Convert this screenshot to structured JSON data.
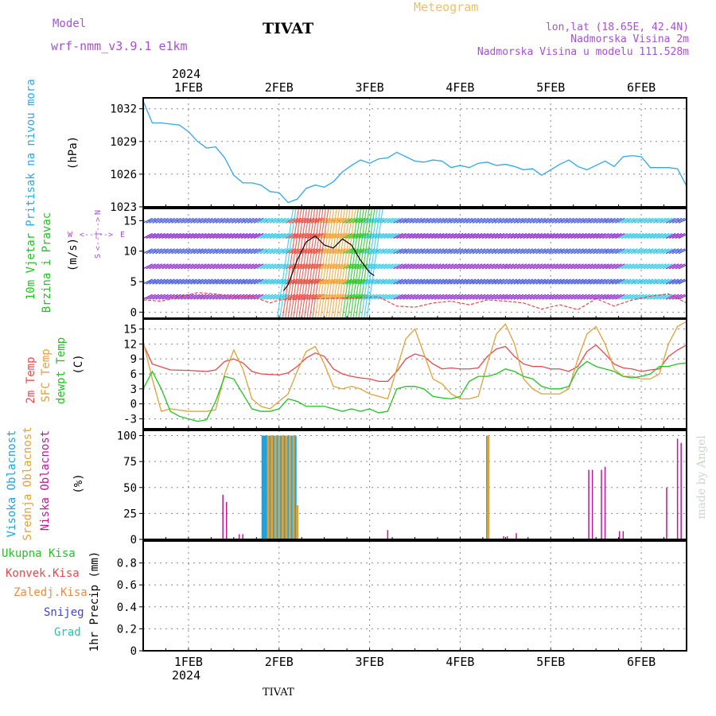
{
  "header": {
    "model_label": "Model",
    "model_name": "wrf-nmm_v3.9.1 e1km",
    "station": "TIVAT",
    "meteogram": "Meteogram",
    "lonlat": "lon,lat (18.65E, 42.4N)",
    "elevation": "Nadmorska Visina 2m",
    "model_elevation": "Nadmorska Visina u modelu 111.528m"
  },
  "footer": {
    "station": "TIVAT",
    "credit": "made by Angel"
  },
  "colors": {
    "pressure": "#2ea8ec",
    "t2m": "#e8474b",
    "sfc": "#e0a238",
    "dewpt": "#22c322",
    "high_cloud": "#1fa3e0",
    "mid_cloud": "#e0a238",
    "low_cloud": "#c0179a",
    "wind_purple": "#8a22d0",
    "wind_blue": "#3f56e0",
    "wind_cyan": "#2cc6e6",
    "title_purple": "#a84fd6",
    "title_orange": "#f0c060"
  },
  "chart_data": [
    {
      "type": "line",
      "name": "pressure-panel",
      "ylabel_side": "Pritisak na nivou mora",
      "ylabel_unit": "(hPa)",
      "yticks": [
        1023,
        1026,
        1029,
        1032
      ],
      "ylim": [
        1023,
        1033
      ],
      "xlim": [
        0.5,
        6.5
      ],
      "x_ticks": [
        1,
        2,
        3,
        4,
        5,
        6
      ],
      "x_tick_labels": [
        "1FEB",
        "2FEB",
        "3FEB",
        "4FEB",
        "5FEB",
        "6FEB"
      ],
      "year_label": "2024",
      "grid": true,
      "series": [
        {
          "color_key": "pressure",
          "x": [
            0.5,
            0.6,
            0.7,
            0.8,
            0.9,
            1.0,
            1.1,
            1.2,
            1.3,
            1.4,
            1.5,
            1.6,
            1.7,
            1.8,
            1.9,
            2.0,
            2.1,
            2.2,
            2.3,
            2.4,
            2.5,
            2.6,
            2.7,
            2.8,
            2.9,
            3.0,
            3.1,
            3.2,
            3.3,
            3.4,
            3.5,
            3.6,
            3.7,
            3.8,
            3.9,
            4.0,
            4.1,
            4.2,
            4.3,
            4.4,
            4.5,
            4.6,
            4.7,
            4.8,
            4.9,
            5.0,
            5.1,
            5.2,
            5.3,
            5.4,
            5.5,
            5.6,
            5.7,
            5.8,
            5.9,
            6.0,
            6.1,
            6.2,
            6.3,
            6.4,
            6.5
          ],
          "y": [
            1032.7,
            1030.7,
            1030.7,
            1030.6,
            1030.5,
            1029.9,
            1029.0,
            1028.4,
            1028.5,
            1027.5,
            1025.9,
            1025.2,
            1025.2,
            1025.0,
            1024.4,
            1024.3,
            1023.4,
            1023.7,
            1024.7,
            1025.0,
            1024.8,
            1025.3,
            1026.2,
            1026.8,
            1027.3,
            1027.0,
            1027.4,
            1027.5,
            1028.0,
            1027.6,
            1027.2,
            1027.1,
            1027.3,
            1027.2,
            1026.6,
            1026.8,
            1026.6,
            1027.0,
            1027.1,
            1026.8,
            1026.9,
            1026.7,
            1026.4,
            1026.5,
            1025.9,
            1026.4,
            1026.9,
            1027.3,
            1026.7,
            1026.4,
            1026.8,
            1027.2,
            1026.7,
            1027.6,
            1027.7,
            1027.6,
            1026.6,
            1026.6,
            1026.6,
            1026.5,
            1024.9
          ]
        }
      ]
    },
    {
      "type": "line",
      "name": "wind-panel",
      "ylabel_side": [
        "10m Vjetar",
        "Brzina i Pravac"
      ],
      "ylabel_unit": "(m/s)",
      "compass": {
        "n": "N",
        "s": "S",
        "e": "E",
        "w": "W"
      },
      "yticks": [
        0,
        5,
        10,
        15
      ],
      "ylim": [
        -1,
        17
      ],
      "xlim": [
        0.5,
        6.5
      ],
      "grid": true,
      "series": [
        {
          "name": "wind-speed-black",
          "x": [
            2.05,
            2.1,
            2.2,
            2.3,
            2.4,
            2.5,
            2.6,
            2.7,
            2.8,
            2.9,
            3.0,
            3.05
          ],
          "y": [
            3.5,
            4.5,
            8.5,
            11.5,
            12.5,
            11.0,
            10.5,
            12.0,
            11.0,
            8.5,
            6.5,
            6.0
          ]
        },
        {
          "name": "wind-speed-red",
          "x": [
            0.5,
            0.7,
            0.9,
            1.1,
            1.3,
            1.5,
            1.7,
            1.9,
            2.0,
            3.1,
            3.3,
            3.5,
            3.7,
            3.9,
            4.1,
            4.3,
            4.5,
            4.7,
            4.9,
            5.1,
            5.3,
            5.5,
            5.7,
            5.9,
            6.1,
            6.3,
            6.5
          ],
          "y": [
            2.0,
            1.8,
            2.5,
            3.2,
            3.0,
            2.5,
            2.6,
            1.5,
            2.0,
            2.5,
            1.0,
            0.8,
            1.5,
            1.8,
            1.2,
            2.0,
            1.8,
            1.5,
            0.5,
            1.2,
            0.4,
            2.2,
            1.0,
            2.0,
            2.6,
            3.0,
            1.5
          ]
        }
      ]
    },
    {
      "type": "line",
      "name": "temperature-panel",
      "ylabel_side": [
        "2m Temp",
        "SFC Temp",
        "dewpt Temp"
      ],
      "ylabel_unit": "(C)",
      "yticks": [
        -3,
        0,
        3,
        6,
        9,
        12,
        15
      ],
      "ylim": [
        -5,
        17
      ],
      "xlim": [
        0.5,
        6.5
      ],
      "grid": true,
      "series": [
        {
          "name": "2m Temp",
          "color_key": "t2m",
          "x": [
            0.5,
            0.6,
            0.8,
            1.0,
            1.2,
            1.3,
            1.4,
            1.5,
            1.6,
            1.7,
            1.8,
            1.9,
            2.0,
            2.1,
            2.2,
            2.3,
            2.4,
            2.5,
            2.6,
            2.7,
            2.8,
            2.9,
            3.0,
            3.1,
            3.2,
            3.3,
            3.4,
            3.5,
            3.6,
            3.7,
            3.8,
            3.9,
            4.0,
            4.1,
            4.2,
            4.3,
            4.4,
            4.5,
            4.6,
            4.7,
            4.8,
            4.9,
            5.0,
            5.1,
            5.2,
            5.3,
            5.4,
            5.5,
            5.6,
            5.7,
            5.8,
            5.9,
            6.0,
            6.1,
            6.2,
            6.3,
            6.4,
            6.5
          ],
          "y": [
            12.0,
            8.0,
            6.8,
            6.7,
            6.5,
            6.8,
            8.5,
            9.0,
            8.2,
            6.5,
            6.0,
            5.9,
            5.8,
            6.2,
            7.5,
            9.2,
            10.2,
            9.5,
            7.0,
            6.0,
            5.5,
            5.2,
            5.0,
            4.5,
            4.5,
            6.5,
            9.0,
            10.0,
            9.5,
            8.0,
            7.0,
            7.2,
            7.0,
            7.0,
            7.2,
            9.5,
            11.0,
            11.5,
            9.5,
            8.0,
            7.5,
            7.5,
            7.0,
            7.0,
            6.5,
            7.5,
            10.5,
            11.8,
            10.0,
            8.0,
            7.2,
            7.0,
            6.5,
            6.8,
            7.0,
            9.5,
            10.8,
            11.8
          ]
        },
        {
          "name": "SFC Temp",
          "color_key": "sfc",
          "x": [
            0.5,
            0.6,
            0.7,
            0.8,
            1.0,
            1.2,
            1.3,
            1.4,
            1.5,
            1.6,
            1.7,
            1.8,
            1.9,
            2.0,
            2.1,
            2.2,
            2.3,
            2.4,
            2.5,
            2.6,
            2.7,
            2.8,
            2.9,
            3.0,
            3.1,
            3.2,
            3.3,
            3.4,
            3.5,
            3.6,
            3.7,
            3.8,
            3.9,
            4.0,
            4.1,
            4.2,
            4.3,
            4.4,
            4.5,
            4.6,
            4.7,
            4.8,
            4.9,
            5.0,
            5.1,
            5.2,
            5.3,
            5.4,
            5.5,
            5.6,
            5.7,
            5.8,
            5.9,
            6.0,
            6.1,
            6.2,
            6.3,
            6.4,
            6.5
          ],
          "y": [
            12.5,
            5.0,
            -1.5,
            -1.0,
            -1.5,
            -1.5,
            -1.2,
            6.0,
            10.8,
            7.0,
            1.0,
            -0.5,
            -1.0,
            0.5,
            2.0,
            6.5,
            10.5,
            11.5,
            8.0,
            3.5,
            3.0,
            3.5,
            3.0,
            2.0,
            1.5,
            1.0,
            7.0,
            13.0,
            15.0,
            10.0,
            5.0,
            4.0,
            2.0,
            1.0,
            1.0,
            1.5,
            8.0,
            14.0,
            16.0,
            12.0,
            5.0,
            3.0,
            2.0,
            2.0,
            2.0,
            3.0,
            9.0,
            14.0,
            15.5,
            12.0,
            7.0,
            5.5,
            5.5,
            5.0,
            5.0,
            6.0,
            12.0,
            15.5,
            16.5
          ]
        },
        {
          "name": "dewpt Temp",
          "color_key": "dewpt",
          "x": [
            0.5,
            0.6,
            0.7,
            0.8,
            0.9,
            1.0,
            1.1,
            1.2,
            1.3,
            1.4,
            1.5,
            1.6,
            1.7,
            1.8,
            1.9,
            2.0,
            2.1,
            2.2,
            2.3,
            2.4,
            2.5,
            2.6,
            2.7,
            2.8,
            2.9,
            3.0,
            3.1,
            3.2,
            3.3,
            3.4,
            3.5,
            3.6,
            3.7,
            3.8,
            3.9,
            4.0,
            4.1,
            4.2,
            4.3,
            4.4,
            4.5,
            4.6,
            4.7,
            4.8,
            4.9,
            5.0,
            5.1,
            5.2,
            5.3,
            5.4,
            5.5,
            5.6,
            5.7,
            5.8,
            5.9,
            6.0,
            6.1,
            6.2,
            6.3,
            6.4,
            6.5
          ],
          "y": [
            3.0,
            6.5,
            3.0,
            -1.5,
            -2.5,
            -3.0,
            -3.5,
            -3.2,
            0.5,
            5.5,
            5.0,
            2.0,
            -1.0,
            -1.5,
            -1.5,
            -1.0,
            1.0,
            0.5,
            -0.5,
            -0.5,
            -0.5,
            -1.0,
            -1.5,
            -1.0,
            -1.5,
            -1.0,
            -1.8,
            -1.5,
            3.0,
            3.5,
            3.5,
            3.0,
            1.5,
            1.2,
            1.0,
            1.5,
            4.5,
            5.5,
            5.5,
            6.0,
            7.0,
            6.5,
            5.5,
            5.0,
            3.5,
            3.0,
            3.0,
            3.5,
            7.0,
            8.5,
            7.5,
            7.0,
            6.5,
            5.5,
            5.2,
            5.5,
            6.0,
            7.5,
            7.5,
            8.0,
            8.2
          ]
        }
      ]
    },
    {
      "type": "bar",
      "name": "cloud-panel",
      "ylabel_side": [
        "Visoka Oblacnost",
        "Srednja Oblacnost",
        "Niska Oblacnost"
      ],
      "ylabel_unit": "(%)",
      "yticks": [
        0,
        25,
        50,
        75,
        100
      ],
      "ylim": [
        0,
        105
      ],
      "xlim": [
        0.5,
        6.5
      ],
      "grid": true,
      "series": [
        {
          "name": "Visoka Oblacnost",
          "color_key": "high_cloud",
          "x": [
            1.82,
            1.84,
            1.86,
            1.9,
            1.94,
            1.98,
            2.02,
            2.06,
            2.1,
            2.14,
            2.18,
            4.3
          ],
          "values": [
            100,
            100,
            100,
            100,
            100,
            100,
            100,
            100,
            100,
            100,
            100,
            100
          ]
        },
        {
          "name": "Srednja Oblacnost",
          "color_key": "mid_cloud",
          "x": [
            1.88,
            1.92,
            1.96,
            2.0,
            2.04,
            2.08,
            2.12,
            2.16,
            2.2,
            4.31
          ],
          "values": [
            100,
            100,
            100,
            100,
            100,
            100,
            100,
            100,
            33,
            100
          ]
        },
        {
          "name": "Niska Oblacnost",
          "color_key": "low_cloud",
          "x": [
            1.38,
            1.42,
            1.56,
            1.6,
            3.2,
            4.48,
            4.52,
            4.62,
            5.42,
            5.46,
            5.56,
            5.6,
            5.76,
            5.8,
            6.28,
            6.4,
            6.44
          ],
          "values": [
            43,
            36,
            5,
            5,
            9,
            3,
            3,
            6,
            67,
            67,
            67,
            70,
            8,
            8,
            50,
            97,
            93
          ]
        }
      ]
    },
    {
      "type": "line",
      "name": "precip-panel",
      "ylabel_side": [
        "Ukupna Kisa",
        "Konvek.Kisa",
        "Zaledj.Kisa",
        "Snijeg",
        "Grad"
      ],
      "ylabel_unit": "1hr Precip (mm)",
      "yticks": [
        0,
        0.2,
        0.4,
        0.6,
        0.8
      ],
      "ylim": [
        0,
        1
      ],
      "xlim": [
        0.5,
        6.5
      ],
      "x_tick_labels": [
        "1FEB",
        "2FEB",
        "3FEB",
        "4FEB",
        "5FEB",
        "6FEB"
      ],
      "year_label": "2024",
      "grid": true,
      "series": []
    }
  ],
  "precip_legend_colors": [
    "#22c322",
    "#e8474b",
    "#f08a3a",
    "#4040e0",
    "#22c3b0"
  ]
}
